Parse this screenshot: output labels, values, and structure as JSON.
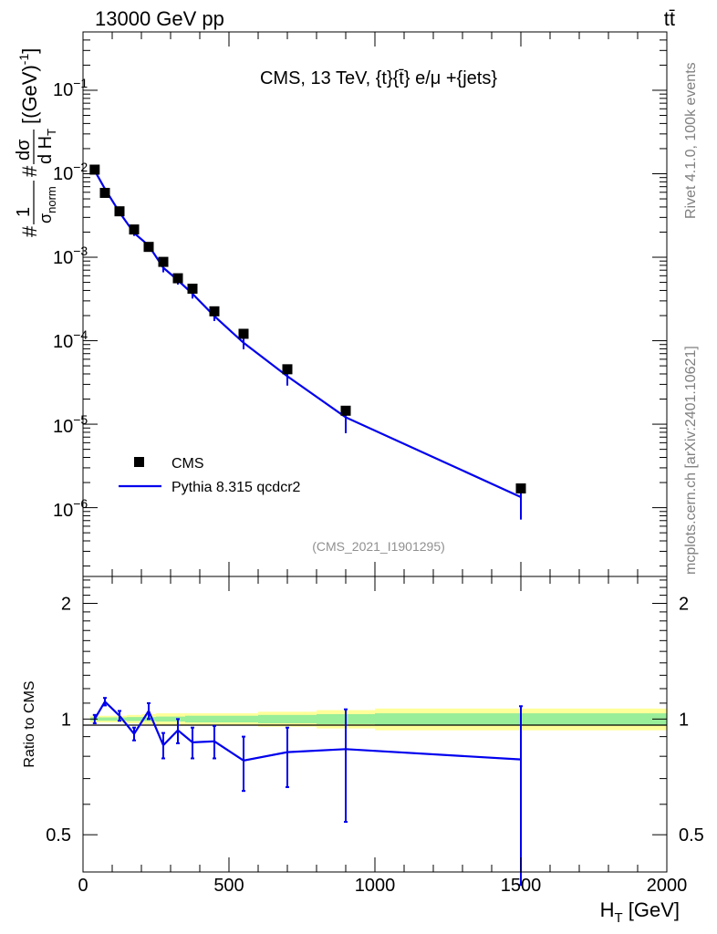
{
  "header": {
    "left": "13000 GeV pp",
    "right": "tt̄"
  },
  "sidebar": {
    "rivet": "Rivet 4.1.0,  100k events",
    "mcplots": "mcplots.cern.ch [arXiv:2401.10621]"
  },
  "colors": {
    "data": "#000000",
    "mc": "#0000ee",
    "band_inner": "#99ee99",
    "band_outer": "#ffff99"
  },
  "chart_data": [
    {
      "type": "scatter",
      "title": "CMS, 13 TeV, {t}{t̄} e/μ +{jets}",
      "ylabel": "# 1/σ_norm # dσ/d H_T [(GeV)^-1]",
      "xlabel": "",
      "xlim": [
        0,
        2000
      ],
      "ylim": [
        1.5e-07,
        0.5
      ],
      "yscale": "log",
      "ytick_labels": [
        "10^-6",
        "10^-5",
        "10^-4",
        "10^-3",
        "10^-2",
        "10^-1"
      ],
      "annotation": "(CMS_2021_I1901295)",
      "legend": {
        "position": "bottom-left",
        "data_label": "CMS",
        "mc_label": "Pythia 8.315 qcdcr2"
      },
      "x": [
        40,
        75,
        125,
        175,
        225,
        275,
        325,
        375,
        450,
        550,
        700,
        900,
        1500
      ],
      "series": [
        {
          "name": "CMS",
          "kind": "markers",
          "values": [
            0.0112,
            0.0059,
            0.00355,
            0.00215,
            0.00133,
            0.00088,
            0.00056,
            0.00042,
            0.000225,
            0.000121,
            4.55e-05,
            1.45e-05,
            1.7e-06
          ]
        },
        {
          "name": "Pythia 8.315 qcdcr2",
          "kind": "line",
          "values": [
            0.0109,
            0.0066,
            0.00345,
            0.00195,
            0.00138,
            0.00075,
            0.00053,
            0.000365,
            0.000197,
            9.45e-05,
            3.75e-05,
            1.21e-05,
            1.34e-06
          ],
          "err_low": [
            0.0106,
            0.0064,
            0.00325,
            0.0018,
            0.00127,
            0.00066,
            0.00047,
            0.00032,
            0.000172,
            7.9e-05,
            2.9e-05,
            7.8e-06,
            7.2e-07
          ],
          "err_high": [
            0.0112,
            0.0068,
            0.00365,
            0.0021,
            0.00149,
            0.00085,
            0.00059,
            0.00041,
            0.000223,
            0.000111,
            4.6e-05,
            1.63e-05,
            1.9e-06
          ]
        }
      ]
    },
    {
      "type": "line",
      "title": "",
      "ylabel": "Ratio to CMS",
      "xlabel": "H_T [GeV]",
      "xlim": [
        0,
        2000
      ],
      "ylim": [
        0.4,
        2.35
      ],
      "yscale": "log",
      "yticks": [
        0.5,
        1,
        2
      ],
      "ytick_labels": [
        "0.5",
        "1",
        "2"
      ],
      "xticks": [
        0,
        500,
        1000,
        1500,
        2000
      ],
      "xtick_labels": [
        "0",
        "500",
        "1000",
        "1500",
        "2000"
      ],
      "bands": {
        "edges": [
          25,
          50,
          100,
          150,
          200,
          250,
          300,
          350,
          400,
          500,
          600,
          800,
          1000,
          2000
        ],
        "inner_half_width": [
          0.01,
          0.01,
          0.01,
          0.012,
          0.012,
          0.015,
          0.015,
          0.02,
          0.02,
          0.02,
          0.025,
          0.03,
          0.035
        ],
        "outer_half_width": [
          0.02,
          0.02,
          0.02,
          0.025,
          0.03,
          0.035,
          0.035,
          0.035,
          0.035,
          0.035,
          0.045,
          0.055,
          0.065
        ]
      },
      "x": [
        40,
        75,
        125,
        175,
        225,
        275,
        325,
        375,
        450,
        550,
        700,
        900,
        1500
      ],
      "values": [
        1.0,
        1.11,
        1.02,
        0.915,
        1.05,
        0.855,
        0.935,
        0.87,
        0.875,
        0.78,
        0.82,
        0.835,
        0.785
      ],
      "err_low": [
        0.975,
        1.085,
        0.99,
        0.88,
        1.0,
        0.79,
        0.865,
        0.79,
        0.79,
        0.65,
        0.665,
        0.54,
        0.37
      ],
      "err_high": [
        1.025,
        1.135,
        1.05,
        0.95,
        1.1,
        0.92,
        1.0,
        0.95,
        0.96,
        0.9,
        0.95,
        1.06,
        1.08
      ]
    }
  ]
}
